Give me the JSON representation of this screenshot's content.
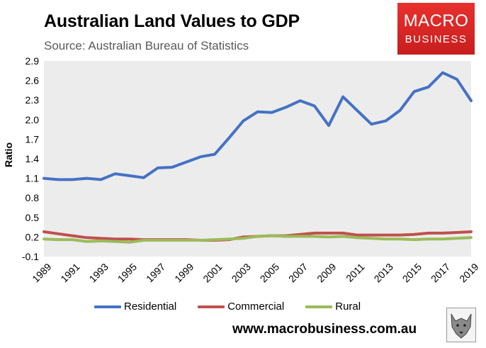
{
  "header": {
    "title": "Australian Land Values to GDP",
    "subtitle": "Source: Australian Bureau of Statistics"
  },
  "logo": {
    "line1": "MACRO",
    "line2": "BUSINESS"
  },
  "footer": {
    "website": "www.macrobusiness.com.au"
  },
  "colors": {
    "Residential": "#4472c4",
    "Commercial": "#c0504d",
    "Rural": "#9bbb59",
    "plot_bg": "#ececec",
    "logo_red": "#d9282a"
  },
  "chart_data": {
    "type": "line",
    "title": "Australian Land Values to GDP",
    "xlabel": "",
    "ylabel": "Ratio",
    "ylim": [
      -0.1,
      2.9
    ],
    "yticks": [
      "-0.1",
      "0.2",
      "0.5",
      "0.8",
      "1.1",
      "1.4",
      "1.7",
      "2.0",
      "2.3",
      "2.6",
      "2.9"
    ],
    "xlim": [
      1989,
      2019
    ],
    "xticks": [
      "1989",
      "1991",
      "1993",
      "1995",
      "1997",
      "1999",
      "2001",
      "2003",
      "2005",
      "2007",
      "2009",
      "2011",
      "2013",
      "2015",
      "2017",
      "2019"
    ],
    "grid": false,
    "legend": "bottom",
    "x": [
      1989,
      1990,
      1991,
      1992,
      1993,
      1994,
      1995,
      1996,
      1997,
      1998,
      1999,
      2000,
      2001,
      2002,
      2003,
      2004,
      2005,
      2006,
      2007,
      2008,
      2009,
      2010,
      2011,
      2012,
      2013,
      2014,
      2015,
      2016,
      2017,
      2018,
      2019
    ],
    "series": [
      {
        "name": "Residential",
        "values": [
          1.1,
          1.08,
          1.08,
          1.1,
          1.08,
          1.17,
          1.14,
          1.11,
          1.26,
          1.27,
          1.35,
          1.43,
          1.47,
          1.72,
          1.98,
          2.12,
          2.11,
          2.19,
          2.29,
          2.21,
          1.91,
          2.35,
          2.14,
          1.93,
          1.98,
          2.14,
          2.43,
          2.5,
          2.72,
          2.62,
          2.29
        ]
      },
      {
        "name": "Commercial",
        "values": [
          0.28,
          0.25,
          0.22,
          0.19,
          0.18,
          0.17,
          0.17,
          0.16,
          0.16,
          0.16,
          0.16,
          0.15,
          0.15,
          0.16,
          0.2,
          0.21,
          0.22,
          0.22,
          0.24,
          0.26,
          0.26,
          0.26,
          0.23,
          0.23,
          0.23,
          0.23,
          0.24,
          0.26,
          0.26,
          0.27,
          0.28
        ]
      },
      {
        "name": "Rural",
        "values": [
          0.17,
          0.16,
          0.16,
          0.13,
          0.14,
          0.13,
          0.12,
          0.15,
          0.15,
          0.15,
          0.15,
          0.15,
          0.16,
          0.17,
          0.18,
          0.21,
          0.22,
          0.21,
          0.21,
          0.21,
          0.2,
          0.21,
          0.19,
          0.18,
          0.17,
          0.17,
          0.16,
          0.17,
          0.17,
          0.18,
          0.19
        ]
      }
    ]
  }
}
